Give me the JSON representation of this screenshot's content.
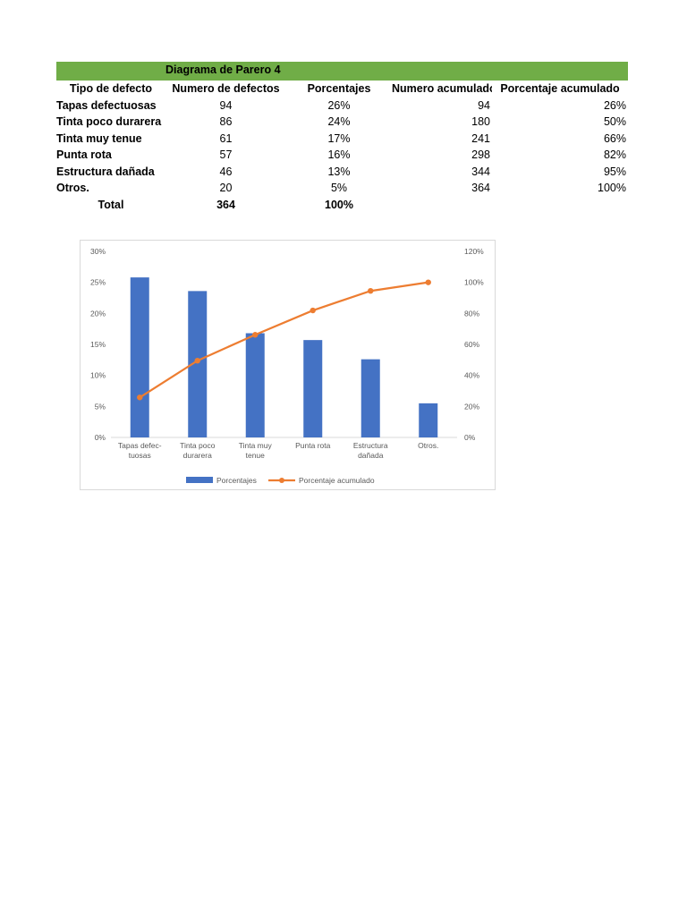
{
  "sheet": {
    "title": "Diagrama de Parero 4",
    "headers": [
      "Tipo de defecto",
      "Numero de defectos",
      "Porcentajes",
      "Numero acumulado",
      "Porcentaje acumulado"
    ],
    "rows": [
      {
        "tipo": "Tapas defectuosas",
        "numero": "94",
        "porcentaje": "26%",
        "acumulado": "94",
        "porc_acum": "26%"
      },
      {
        "tipo": "Tinta poco durarera",
        "numero": "86",
        "porcentaje": "24%",
        "acumulado": "180",
        "porc_acum": "50%"
      },
      {
        "tipo": "Tinta muy tenue",
        "numero": "61",
        "porcentaje": "17%",
        "acumulado": "241",
        "porc_acum": "66%"
      },
      {
        "tipo": "Punta rota",
        "numero": "57",
        "porcentaje": "16%",
        "acumulado": "298",
        "porc_acum": "82%"
      },
      {
        "tipo": "Estructura dañada",
        "numero": "46",
        "porcentaje": "13%",
        "acumulado": "344",
        "porc_acum": "95%"
      },
      {
        "tipo": "Otros.",
        "numero": "20",
        "porcentaje": "5%",
        "acumulado": "364",
        "porc_acum": "100%"
      }
    ],
    "total": {
      "label": "Total",
      "numero": "364",
      "porcentaje": "100%"
    }
  },
  "chart_data": {
    "type": "bar",
    "categories": [
      [
        "Tapas defec-",
        "tuosas"
      ],
      [
        "Tinta poco",
        "durarera"
      ],
      [
        "Tinta muy",
        "tenue"
      ],
      [
        "Punta rota"
      ],
      [
        "Estructura",
        "dañada"
      ],
      [
        "Otros."
      ]
    ],
    "series": [
      {
        "name": "Porcentajes",
        "type": "bar",
        "axis": "left",
        "values": [
          25.8,
          23.6,
          16.8,
          15.7,
          12.6,
          5.5
        ]
      },
      {
        "name": "Porcentaje acumulado",
        "type": "line",
        "axis": "right",
        "values": [
          25.8,
          49.5,
          66.2,
          81.9,
          94.5,
          100
        ]
      }
    ],
    "left_axis": {
      "min": 0,
      "max": 30,
      "step": 5,
      "suffix": "%"
    },
    "right_axis": {
      "min": 0,
      "max": 120,
      "step": 20,
      "suffix": "%"
    },
    "colors": {
      "bar": "#4472c4",
      "line": "#ed7d31"
    },
    "legend": "bottom",
    "grid": false
  }
}
